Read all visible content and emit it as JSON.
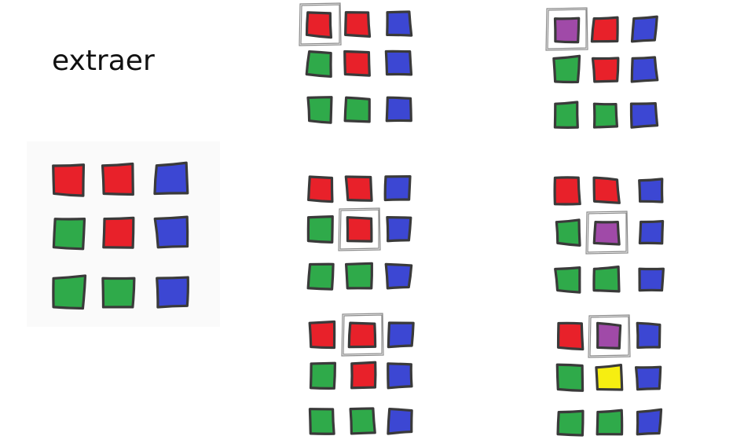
{
  "title": "extraer",
  "colors": {
    "red": "#e8212a",
    "green": "#2faa4a",
    "blue": "#3c47d3",
    "purple": "#a04aa8",
    "yellow": "#f6ee11",
    "outline": "#3a3a3a"
  },
  "grids": [
    {
      "name": "source-grid",
      "cells": [
        "red",
        "red",
        "blue",
        "green",
        "red",
        "blue",
        "green",
        "green",
        "blue"
      ],
      "selected": null
    },
    {
      "name": "step-1-before",
      "cells": [
        "red",
        "red",
        "blue",
        "green",
        "red",
        "blue",
        "green",
        "green",
        "blue"
      ],
      "selected": 0
    },
    {
      "name": "step-1-after",
      "cells": [
        "purple",
        "red",
        "blue",
        "green",
        "red",
        "blue",
        "green",
        "green",
        "blue"
      ],
      "selected": 0
    },
    {
      "name": "step-2-before",
      "cells": [
        "red",
        "red",
        "blue",
        "green",
        "red",
        "blue",
        "green",
        "green",
        "blue"
      ],
      "selected": 4
    },
    {
      "name": "step-2-after",
      "cells": [
        "red",
        "red",
        "blue",
        "green",
        "purple",
        "blue",
        "green",
        "green",
        "blue"
      ],
      "selected": 4
    },
    {
      "name": "step-3-before",
      "cells": [
        "red",
        "red",
        "blue",
        "green",
        "red",
        "blue",
        "green",
        "green",
        "blue"
      ],
      "selected": 1
    },
    {
      "name": "step-3-after",
      "cells": [
        "red",
        "purple",
        "blue",
        "green",
        "yellow",
        "blue",
        "green",
        "green",
        "blue"
      ],
      "selected": 1
    }
  ]
}
